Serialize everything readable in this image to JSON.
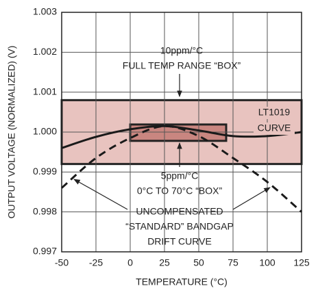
{
  "chart_data": {
    "type": "line",
    "x_label": "TEMPERATURE (°C)",
    "y_label": "OUTPUT VOLTAGE (NORMALIZED) (V)",
    "x": [
      -50,
      -25,
      0,
      25,
      50,
      75,
      100,
      125
    ],
    "series": [
      {
        "color": "#1a1a1a",
        "dash": false,
        "values": [
          0.9996,
          0.99988,
          1.00007,
          1.00015,
          1.00004,
          0.9999,
          0.9999,
          1.0
        ]
      },
      {
        "color": "#1a1a1a",
        "dash": true,
        "values": [
          0.9986,
          0.99935,
          0.99985,
          1.00015,
          0.9999,
          0.99935,
          0.99875,
          0.998
        ]
      }
    ],
    "boxes": [
      {
        "x": [
          -50,
          125
        ],
        "y": [
          0.9992,
          1.0008
        ],
        "color": "#e8c3bf"
      },
      {
        "x": [
          0,
          70
        ],
        "y": [
          0.99978,
          1.00019
        ],
        "color": "#c98680"
      }
    ],
    "annotations": [
      "10ppm/°C",
      "FULL TEMP RANGE “BOX”",
      "LT1019",
      "CURVE",
      "5ppm/°C",
      "0°C TO 70°C “BOX”",
      "UNCOMPENSATED",
      "“STANDARD” BANDGAP",
      "DRIFT CURVE"
    ],
    "xlim": [
      -50,
      125
    ],
    "ylim": [
      0.997,
      1.003
    ],
    "xticks": [
      -50,
      -25,
      0,
      25,
      50,
      75,
      100,
      125
    ],
    "yticks": [
      0.997,
      0.998,
      0.999,
      {
        "value": 1,
        "label": "1.000"
      },
      1.001,
      1.002,
      1.003
    ],
    "grid": true
  }
}
